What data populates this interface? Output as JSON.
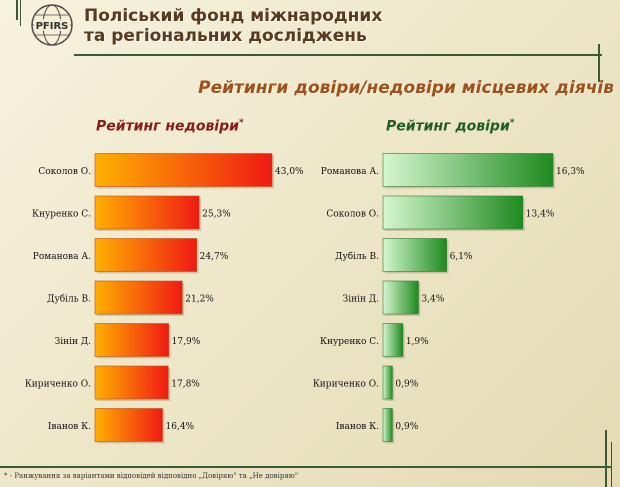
{
  "header": {
    "org_line1": "Поліський фонд міжнародних",
    "org_line2": "та регіональних досліджень",
    "logo_text": "PFIRS",
    "main_title": "Рейтинги довіри/недовіри місцевих діячів"
  },
  "colors": {
    "distrust_start": "#ffb000",
    "distrust_end": "#f01a14",
    "trust_start": "#d6f7d0",
    "trust_end": "#1f8a1f",
    "deco": "#3b5a36"
  },
  "chart_data": [
    {
      "type": "bar",
      "orientation": "horizontal",
      "title": "Рейтинг недовіри",
      "title_marker": "*",
      "categories": [
        "Соколов О.",
        "Кнуренко С.",
        "Романова А.",
        "Дубіль В.",
        "Зінін Д.",
        "Кириченко О.",
        "Іванов К."
      ],
      "values": [
        43.0,
        25.3,
        24.7,
        21.2,
        17.9,
        17.8,
        16.4
      ],
      "value_labels": [
        "43,0%",
        "25,3%",
        "24,7%",
        "21,2%",
        "17,9%",
        "17,8%",
        "16,4%"
      ],
      "unit": "%",
      "xlim": [
        0,
        43.0
      ],
      "grid": false,
      "legend": "none"
    },
    {
      "type": "bar",
      "orientation": "horizontal",
      "title": "Рейтинг довіри",
      "title_marker": "*",
      "categories": [
        "Романова А.",
        "Соколов О.",
        "Дубіль В.",
        "Зінін Д.",
        "Кнуренко С.",
        "Кириченко О.",
        "Іванов К."
      ],
      "values": [
        16.3,
        13.4,
        6.1,
        3.4,
        1.9,
        0.9,
        0.9
      ],
      "value_labels": [
        "16,3%",
        "13,4%",
        "6,1%",
        "3,4%",
        "1,9%",
        "0,9%",
        "0,9%"
      ],
      "unit": "%",
      "xlim": [
        0,
        16.3
      ],
      "grid": false,
      "legend": "none"
    }
  ],
  "footnote": "* - Ранжування за варіантами відповідей відповідно „Довіряю\" та „Не довіряю\""
}
